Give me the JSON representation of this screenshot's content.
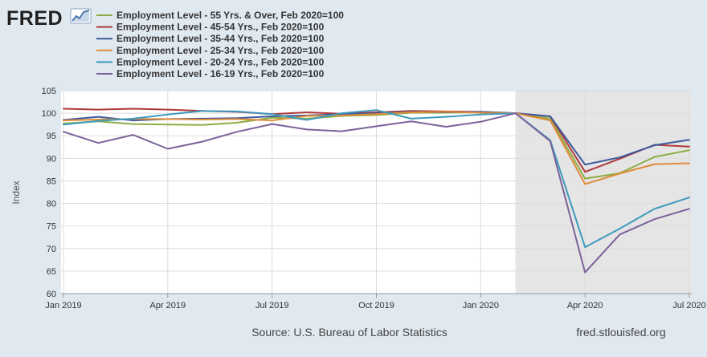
{
  "header": {
    "logo_text": "FRED",
    "logo_icon": "line-chart-icon"
  },
  "footer": {
    "source": "Source: U.S. Bureau of Labor Statistics",
    "site": "fred.stlouisfed.org"
  },
  "chart_data": {
    "type": "line",
    "ylabel": "Index",
    "ylim": [
      60,
      105
    ],
    "xlim": [
      "2019-01",
      "2020-07"
    ],
    "grid": true,
    "legend_position": "top-left",
    "recession_shading": {
      "start": "2020-02",
      "end": "2020-07",
      "color": "#e5e5e5"
    },
    "x_ticks": [
      {
        "date": "2019-01",
        "label": "Jan 2019"
      },
      {
        "date": "2019-04",
        "label": "Apr 2019"
      },
      {
        "date": "2019-07",
        "label": "Jul 2019"
      },
      {
        "date": "2019-10",
        "label": "Oct 2019"
      },
      {
        "date": "2020-01",
        "label": "Jan 2020"
      },
      {
        "date": "2020-04",
        "label": "Apr 2020"
      },
      {
        "date": "2020-07",
        "label": "Jul 2020"
      }
    ],
    "y_ticks": [
      60,
      65,
      70,
      75,
      80,
      85,
      90,
      95,
      100,
      105
    ],
    "x": [
      "2019-01",
      "2019-02",
      "2019-03",
      "2019-04",
      "2019-05",
      "2019-06",
      "2019-07",
      "2019-08",
      "2019-09",
      "2019-10",
      "2019-11",
      "2019-12",
      "2020-01",
      "2020-02",
      "2020-03",
      "2020-04",
      "2020-05",
      "2020-06",
      "2020-07"
    ],
    "series": [
      {
        "name": "Employment Level - 55 Yrs. & Over, Feb 2020=100",
        "color": "#8cad45",
        "values": [
          97.7,
          98.2,
          97.6,
          97.5,
          97.4,
          97.9,
          99.0,
          98.8,
          99.4,
          99.6,
          100.1,
          100.1,
          100.2,
          100.0,
          98.8,
          85.5,
          86.7,
          90.3,
          91.8
        ]
      },
      {
        "name": "Employment Level - 45-54 Yrs., Feb 2020=100",
        "color": "#b03a3a",
        "values": [
          101.0,
          100.8,
          101.0,
          100.8,
          100.5,
          100.3,
          99.8,
          100.2,
          99.9,
          100.2,
          100.5,
          100.4,
          100.3,
          100.0,
          99.3,
          87.0,
          89.9,
          93.0,
          92.6
        ]
      },
      {
        "name": "Employment Level - 35-44 Yrs., Feb 2020=100",
        "color": "#3d5a9e",
        "values": [
          98.5,
          99.2,
          98.4,
          98.7,
          98.8,
          98.9,
          99.3,
          99.5,
          99.8,
          100.0,
          100.3,
          100.2,
          100.3,
          100.0,
          99.3,
          88.6,
          90.2,
          92.9,
          94.1
        ]
      },
      {
        "name": "Employment Level - 25-34 Yrs., Feb 2020=100",
        "color": "#e08c3a",
        "values": [
          98.4,
          98.6,
          98.7,
          98.7,
          98.6,
          98.7,
          98.4,
          99.4,
          99.5,
          99.8,
          100.2,
          100.3,
          100.1,
          100.0,
          98.4,
          84.3,
          86.6,
          88.7,
          88.9
        ]
      },
      {
        "name": "Employment Level - 20-24 Yrs., Feb 2020=100",
        "color": "#3e9bbd",
        "values": [
          97.5,
          98.3,
          98.8,
          99.7,
          100.5,
          100.4,
          99.8,
          98.5,
          100.0,
          100.7,
          98.8,
          99.2,
          99.7,
          100.0,
          94.0,
          70.3,
          74.4,
          78.8,
          81.3
        ]
      },
      {
        "name": "Employment Level - 16-19 Yrs., Feb 2020=100",
        "color": "#7b629b",
        "values": [
          95.9,
          93.4,
          95.2,
          92.1,
          93.7,
          95.9,
          97.6,
          96.4,
          96.0,
          97.1,
          98.2,
          97.0,
          98.1,
          100.0,
          93.8,
          64.7,
          73.1,
          76.5,
          78.8
        ]
      }
    ]
  }
}
